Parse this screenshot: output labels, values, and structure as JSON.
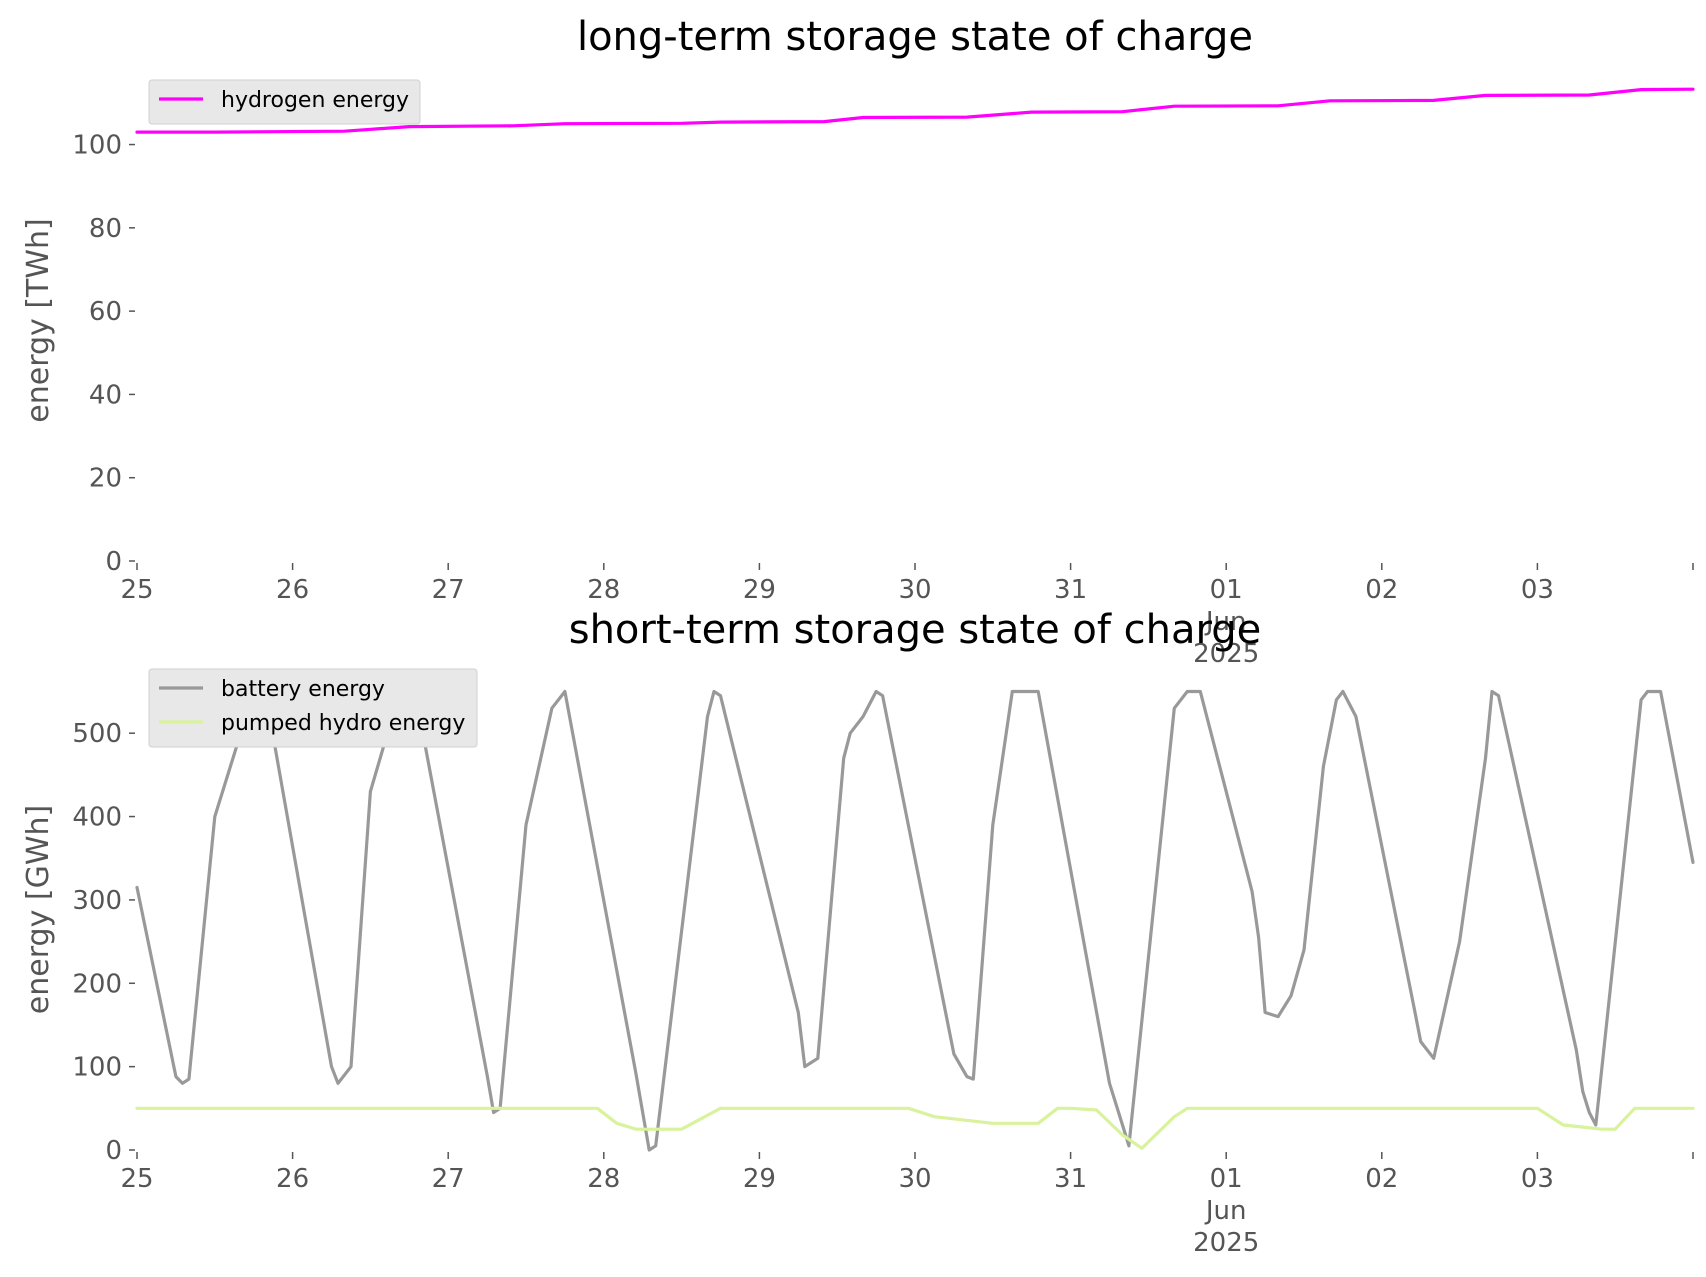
{
  "chart_data": [
    {
      "type": "line",
      "title": "long-term storage state of charge",
      "xlabel": "",
      "ylabel": "energy [TWh]",
      "x_ticks": [
        {
          "x": "2025-05-25",
          "label": [
            "25"
          ]
        },
        {
          "x": "2025-05-26",
          "label": [
            "26"
          ]
        },
        {
          "x": "2025-05-27",
          "label": [
            "27"
          ]
        },
        {
          "x": "2025-05-28",
          "label": [
            "28"
          ]
        },
        {
          "x": "2025-05-29",
          "label": [
            "29"
          ]
        },
        {
          "x": "2025-05-30",
          "label": [
            "30"
          ]
        },
        {
          "x": "2025-05-31",
          "label": [
            "31"
          ]
        },
        {
          "x": "2025-06-01",
          "label": [
            "01",
            "Jun",
            "2025"
          ]
        },
        {
          "x": "2025-06-02",
          "label": [
            "02"
          ]
        },
        {
          "x": "2025-06-03",
          "label": [
            "03"
          ]
        },
        {
          "x": "2025-06-04",
          "label": [
            ""
          ]
        }
      ],
      "y_ticks": [
        0,
        20,
        40,
        60,
        80,
        100
      ],
      "xlim": [
        "2025-05-25",
        "2025-06-04"
      ],
      "ylim": [
        0,
        115.5
      ],
      "grid": false,
      "legend": "top-left",
      "series": [
        {
          "name": "hydrogen energy",
          "color": "#ff00ff",
          "x": [
            "2025-05-25 00:00",
            "2025-05-25 12:00",
            "2025-05-26 08:00",
            "2025-05-26 18:00",
            "2025-05-27 10:00",
            "2025-05-27 18:00",
            "2025-05-28 12:00",
            "2025-05-28 18:00",
            "2025-05-29 10:00",
            "2025-05-29 16:00",
            "2025-05-30 08:00",
            "2025-05-30 18:00",
            "2025-05-31 08:00",
            "2025-05-31 16:00",
            "2025-06-01 08:00",
            "2025-06-01 16:00",
            "2025-06-02 08:00",
            "2025-06-02 16:00",
            "2025-06-03 08:00",
            "2025-06-03 16:00",
            "2025-06-04 00:00"
          ],
          "y": [
            103.0,
            103.0,
            103.2,
            104.3,
            104.5,
            105.0,
            105.1,
            105.4,
            105.5,
            106.5,
            106.6,
            107.8,
            107.9,
            109.2,
            109.3,
            110.5,
            110.6,
            111.8,
            111.9,
            113.2,
            113.3
          ]
        }
      ]
    },
    {
      "type": "line",
      "title": "short-term storage state of charge",
      "xlabel": "",
      "ylabel": "energy [GWh]",
      "x_ticks": [
        {
          "x": "2025-05-25",
          "label": [
            "25"
          ]
        },
        {
          "x": "2025-05-26",
          "label": [
            "26"
          ]
        },
        {
          "x": "2025-05-27",
          "label": [
            "27"
          ]
        },
        {
          "x": "2025-05-28",
          "label": [
            "28"
          ]
        },
        {
          "x": "2025-05-29",
          "label": [
            "29"
          ]
        },
        {
          "x": "2025-05-30",
          "label": [
            "30"
          ]
        },
        {
          "x": "2025-05-31",
          "label": [
            "31"
          ]
        },
        {
          "x": "2025-06-01",
          "label": [
            "01",
            "Jun",
            "2025"
          ]
        },
        {
          "x": "2025-06-02",
          "label": [
            "02"
          ]
        },
        {
          "x": "2025-06-03",
          "label": [
            "03"
          ]
        },
        {
          "x": "2025-06-04",
          "label": [
            ""
          ]
        }
      ],
      "y_ticks": [
        0,
        100,
        200,
        300,
        400,
        500
      ],
      "xlim": [
        "2025-05-25",
        "2025-06-04"
      ],
      "ylim": [
        0,
        577
      ],
      "grid": false,
      "legend": "top-left",
      "series": [
        {
          "name": "battery energy",
          "color": "#999999",
          "x": [
            "2025-05-25 00:00",
            "2025-05-25 06:00",
            "2025-05-25 07:00",
            "2025-05-25 08:00",
            "2025-05-25 12:00",
            "2025-05-25 18:00",
            "2025-05-25 20:00",
            "2025-05-26 06:00",
            "2025-05-26 07:00",
            "2025-05-26 09:00",
            "2025-05-26 12:00",
            "2025-05-26 15:00",
            "2025-05-26 18:00",
            "2025-05-26 19:00",
            "2025-05-27 06:00",
            "2025-05-27 07:00",
            "2025-05-27 08:00",
            "2025-05-27 12:00",
            "2025-05-27 16:00",
            "2025-05-27 18:00",
            "2025-05-28 05:00",
            "2025-05-28 07:00",
            "2025-05-28 08:00",
            "2025-05-28 16:00",
            "2025-05-28 17:00",
            "2025-05-28 18:00",
            "2025-05-29 06:00",
            "2025-05-29 07:00",
            "2025-05-29 09:00",
            "2025-05-29 13:00",
            "2025-05-29 14:00",
            "2025-05-29 16:00",
            "2025-05-29 18:00",
            "2025-05-29 19:00",
            "2025-05-30 06:00",
            "2025-05-30 08:00",
            "2025-05-30 09:00",
            "2025-05-30 12:00",
            "2025-05-30 15:00",
            "2025-05-30 19:00",
            "2025-05-31 06:00",
            "2025-05-31 08:00",
            "2025-05-31 09:00",
            "2025-05-31 16:00",
            "2025-05-31 18:00",
            "2025-05-31 20:00",
            "2025-06-01 04:00",
            "2025-06-01 05:00",
            "2025-06-01 06:00",
            "2025-06-01 08:00",
            "2025-06-01 10:00",
            "2025-06-01 12:00",
            "2025-06-01 15:00",
            "2025-06-01 17:00",
            "2025-06-01 18:00",
            "2025-06-01 20:00",
            "2025-06-02 05:00",
            "2025-06-02 06:00",
            "2025-06-02 08:00",
            "2025-06-02 12:00",
            "2025-06-02 16:00",
            "2025-06-02 17:00",
            "2025-06-02 18:00",
            "2025-06-03 06:00",
            "2025-06-03 07:00",
            "2025-06-03 08:00",
            "2025-06-03 09:00",
            "2025-06-03 16:00",
            "2025-06-03 17:00",
            "2025-06-03 19:00",
            "2025-06-04 00:00"
          ],
          "y": [
            315,
            88,
            80,
            85,
            400,
            550,
            540,
            100,
            80,
            100,
            430,
            510,
            550,
            545,
            90,
            45,
            50,
            390,
            530,
            550,
            90,
            0,
            5,
            520,
            550,
            545,
            165,
            100,
            110,
            470,
            500,
            520,
            550,
            545,
            115,
            88,
            85,
            390,
            550,
            550,
            80,
            30,
            5,
            530,
            550,
            550,
            310,
            255,
            165,
            160,
            185,
            240,
            460,
            540,
            550,
            520,
            170,
            130,
            110,
            250,
            470,
            550,
            545,
            120,
            70,
            45,
            30,
            540,
            550,
            550,
            345
          ]
        },
        {
          "name": "pumped hydro energy",
          "color": "#d9f29c",
          "x": [
            "2025-05-25 00:00",
            "2025-05-27 23:00",
            "2025-05-28 02:00",
            "2025-05-28 05:00",
            "2025-05-28 12:00",
            "2025-05-28 18:00",
            "2025-05-29 23:00",
            "2025-05-30 03:00",
            "2025-05-30 12:00",
            "2025-05-30 18:00",
            "2025-05-30 19:00",
            "2025-05-30 22:00",
            "2025-05-31 00:00",
            "2025-05-31 04:00",
            "2025-05-31 08:00",
            "2025-05-31 11:00",
            "2025-05-31 16:00",
            "2025-05-31 18:00",
            "2025-06-03 00:00",
            "2025-06-03 04:00",
            "2025-06-03 10:00",
            "2025-06-03 12:00",
            "2025-06-03 15:00",
            "2025-06-04 00:00"
          ],
          "y": [
            50,
            50,
            32,
            25,
            25,
            50,
            50,
            40,
            32,
            32,
            32,
            50,
            50,
            48,
            18,
            2,
            40,
            50,
            50,
            30,
            25,
            25,
            50,
            50
          ]
        }
      ]
    }
  ]
}
